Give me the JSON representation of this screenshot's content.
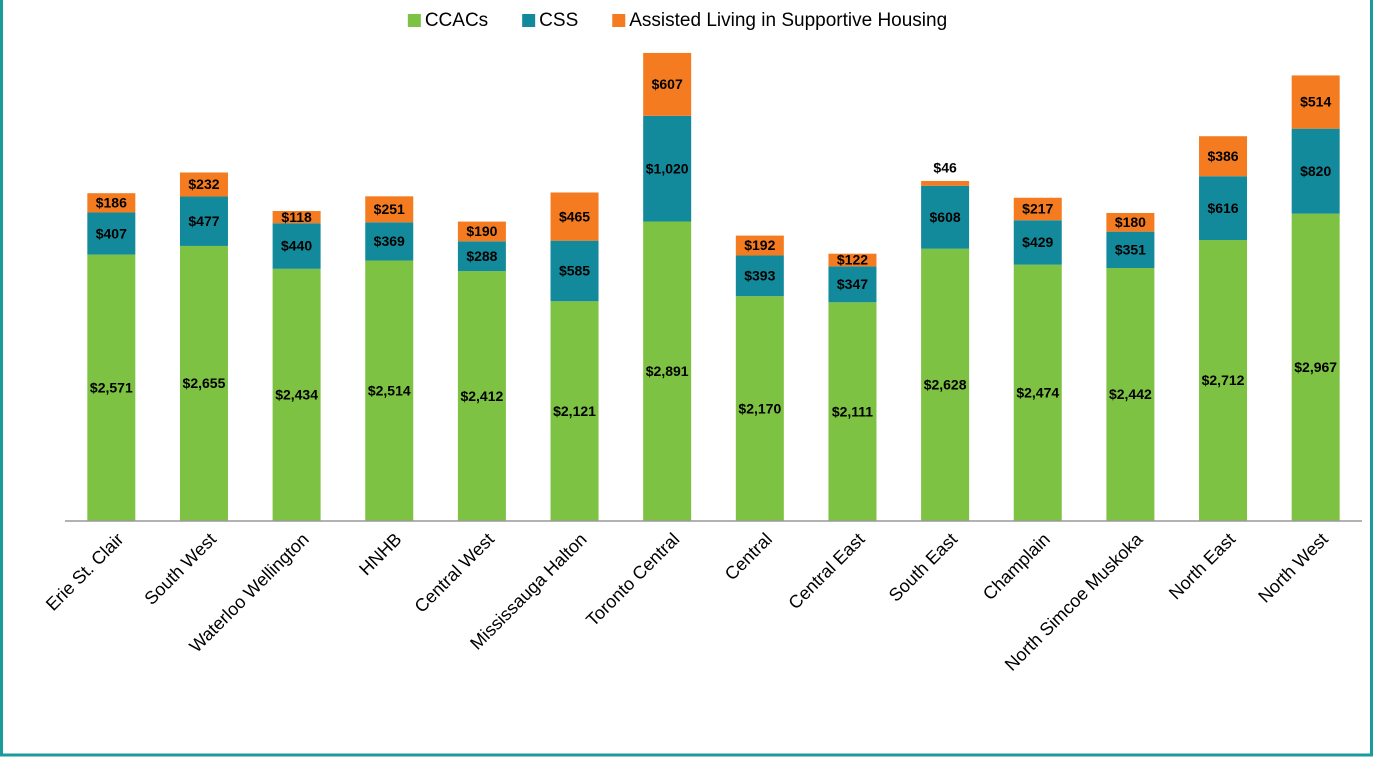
{
  "chart_data": {
    "type": "bar",
    "stacked": true,
    "categories": [
      "Erie St. Clair",
      "South West",
      "Waterloo Wellington",
      "HNHB",
      "Central West",
      "Mississauga Halton",
      "Toronto Central",
      "Central",
      "Central East",
      "South East",
      "Champlain",
      "North Simcoe Muskoka",
      "North East",
      "North West"
    ],
    "series": [
      {
        "name": "CCACs",
        "color": "#7dc242",
        "values": [
          2571,
          2655,
          2434,
          2514,
          2412,
          2121,
          2891,
          2170,
          2111,
          2628,
          2474,
          2442,
          2712,
          2967
        ],
        "value_labels": [
          "$2,571",
          "$2,655",
          "$2,434",
          "$2,514",
          "$2,412",
          "$2,121",
          "$2,891",
          "$2,170",
          "$2,111",
          "$2,628",
          "$2,474",
          "$2,442",
          "$2,712",
          "$2,967"
        ]
      },
      {
        "name": "CSS",
        "color": "#138a9c",
        "values": [
          407,
          477,
          440,
          369,
          288,
          585,
          1020,
          393,
          347,
          608,
          429,
          351,
          616,
          820
        ],
        "value_labels": [
          "$407",
          "$477",
          "$440",
          "$369",
          "$288",
          "$585",
          "$1,020",
          "$393",
          "$347",
          "$608",
          "$429",
          "$351",
          "$616",
          "$820"
        ]
      },
      {
        "name": "Assisted Living in Supportive Housing",
        "color": "#f47b20",
        "values": [
          186,
          232,
          118,
          251,
          190,
          465,
          607,
          192,
          122,
          46,
          217,
          180,
          386,
          514
        ],
        "value_labels": [
          "$186",
          "$232",
          "$118",
          "$251",
          "$190",
          "$465",
          "$607",
          "$192",
          "$122",
          "$46",
          "$217",
          "$180",
          "$386",
          "$514"
        ]
      }
    ],
    "ylim": [
      0,
      5000
    ],
    "legend": "top"
  }
}
